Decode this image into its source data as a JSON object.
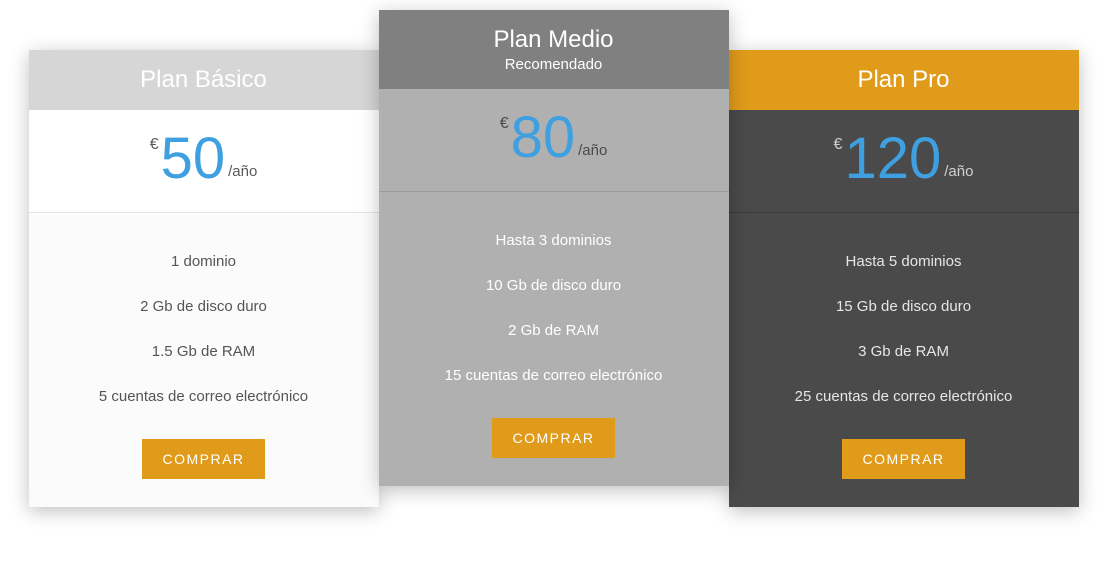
{
  "colors": {
    "accent_orange": "#e09b1b",
    "price_blue": "#3ea0e0",
    "header_grey_light": "#d6d6d6",
    "header_grey_mid": "#808080",
    "body_grey_mid": "#b0b0b0",
    "body_dark": "#4a4a4a",
    "background": "#ffffff"
  },
  "typography": {
    "title_fontsize": 24,
    "price_fontsize": 58,
    "feature_fontsize": 15,
    "cta_fontsize": 14
  },
  "currency_symbol": "€",
  "period_label": "/año",
  "cta_label": "COMPRAR",
  "plans": [
    {
      "id": "basic",
      "title": "Plan Básico",
      "subtitle": "",
      "price": "50",
      "highlight": false,
      "header_bg": "#d6d6d6",
      "body_bg": "#fbfbfb",
      "price_bg": "#ffffff",
      "feature_color": "#555555",
      "features": [
        "1 dominio",
        "2 Gb de disco duro",
        "1.5 Gb de RAM",
        "5 cuentas de correo electrónico"
      ]
    },
    {
      "id": "medio",
      "title": "Plan Medio",
      "subtitle": "Recomendado",
      "price": "80",
      "highlight": true,
      "header_bg": "#808080",
      "body_bg": "#b0b0b0",
      "price_bg": "#b0b0b0",
      "feature_color": "#ffffff",
      "features": [
        "Hasta 3 dominios",
        "10 Gb de disco duro",
        "2 Gb de RAM",
        "15 cuentas de correo electrónico"
      ]
    },
    {
      "id": "pro",
      "title": "Plan Pro",
      "subtitle": "",
      "price": "120",
      "highlight": false,
      "header_bg": "#e09b1b",
      "body_bg": "#4a4a4a",
      "price_bg": "#4a4a4a",
      "feature_color": "#e6e6e6",
      "features": [
        "Hasta 5 dominios",
        "15 Gb de disco duro",
        "3 Gb de RAM",
        "25 cuentas de correo electrónico"
      ]
    }
  ]
}
